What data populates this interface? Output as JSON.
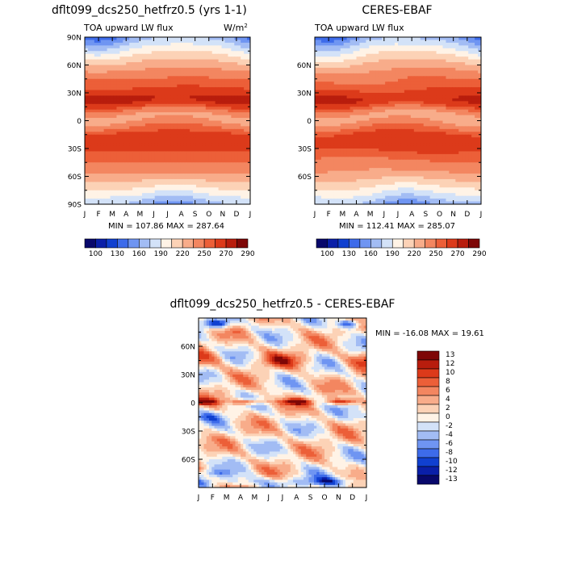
{
  "palette": {
    "colors": [
      "#08086b",
      "#0a1fa8",
      "#1040d0",
      "#3d6bea",
      "#6f95f2",
      "#a2bcf4",
      "#d3e2f8",
      "#fff3e6",
      "#fcd2b6",
      "#f8ac8a",
      "#f38660",
      "#ec5f38",
      "#dc3a1a",
      "#b81d0d",
      "#7e0707"
    ]
  },
  "chart_data": [
    {
      "id": "panel-model",
      "type": "heatmap",
      "title": "dflt099_dcs250_hetfrz0.5 (yrs 1-1)",
      "subtitle": "TOA upward LW flux",
      "units_base": "W/m",
      "units_exp": "2",
      "x_ticks": [
        "J",
        "F",
        "M",
        "A",
        "M",
        "J",
        "J",
        "A",
        "S",
        "O",
        "N",
        "D",
        "J"
      ],
      "y_ticks": [
        "90N",
        "60N",
        "30N",
        "0",
        "30S",
        "60S",
        "90S"
      ],
      "y_range": [
        -90,
        90
      ],
      "stats": "MIN = 107.86   MAX = 287.64",
      "min": 107.86,
      "max": 287.64,
      "colorbar": {
        "levels": [
          100,
          115,
          130,
          145,
          160,
          175,
          190,
          205,
          220,
          235,
          250,
          260,
          270,
          280,
          290
        ],
        "labels": [
          "100",
          "130",
          "160",
          "190",
          "220",
          "250",
          "270",
          "290"
        ]
      }
    },
    {
      "id": "panel-obs",
      "type": "heatmap",
      "title": "CERES-EBAF",
      "subtitle": "TOA upward LW flux",
      "x_ticks": [
        "J",
        "F",
        "M",
        "A",
        "M",
        "J",
        "J",
        "A",
        "S",
        "O",
        "N",
        "D",
        "J"
      ],
      "y_ticks": [
        "60N",
        "30N",
        "0",
        "30S",
        "60S"
      ],
      "y_range": [
        -90,
        90
      ],
      "stats": "MIN = 112.41   MAX = 285.07",
      "min": 112.41,
      "max": 285.07,
      "colorbar": {
        "levels": [
          100,
          115,
          130,
          145,
          160,
          175,
          190,
          205,
          220,
          235,
          250,
          260,
          270,
          280,
          290
        ],
        "labels": [
          "100",
          "130",
          "160",
          "190",
          "220",
          "250",
          "270",
          "290"
        ]
      }
    },
    {
      "id": "panel-diff",
      "type": "heatmap",
      "title": "dflt099_dcs250_hetfrz0.5 - CERES-EBAF",
      "x_ticks": [
        "J",
        "F",
        "M",
        "A",
        "M",
        "J",
        "J",
        "A",
        "S",
        "O",
        "N",
        "D",
        "J"
      ],
      "y_ticks": [
        "60N",
        "30N",
        "0",
        "30S",
        "60S"
      ],
      "y_range": [
        -90,
        90
      ],
      "stats": "MIN = -16.08   MAX =  19.61",
      "min": -16.08,
      "max": 19.61,
      "colorbar": {
        "levels": [
          -13,
          -12,
          -10,
          -8,
          -6,
          -4,
          -2,
          0,
          2,
          4,
          6,
          8,
          10,
          12,
          13
        ],
        "labels": [
          "13",
          "12",
          "10",
          "8",
          "6",
          "4",
          "2",
          "0",
          "-2",
          "-4",
          "-6",
          "-8",
          "-10",
          "-12",
          "-13"
        ]
      }
    }
  ]
}
